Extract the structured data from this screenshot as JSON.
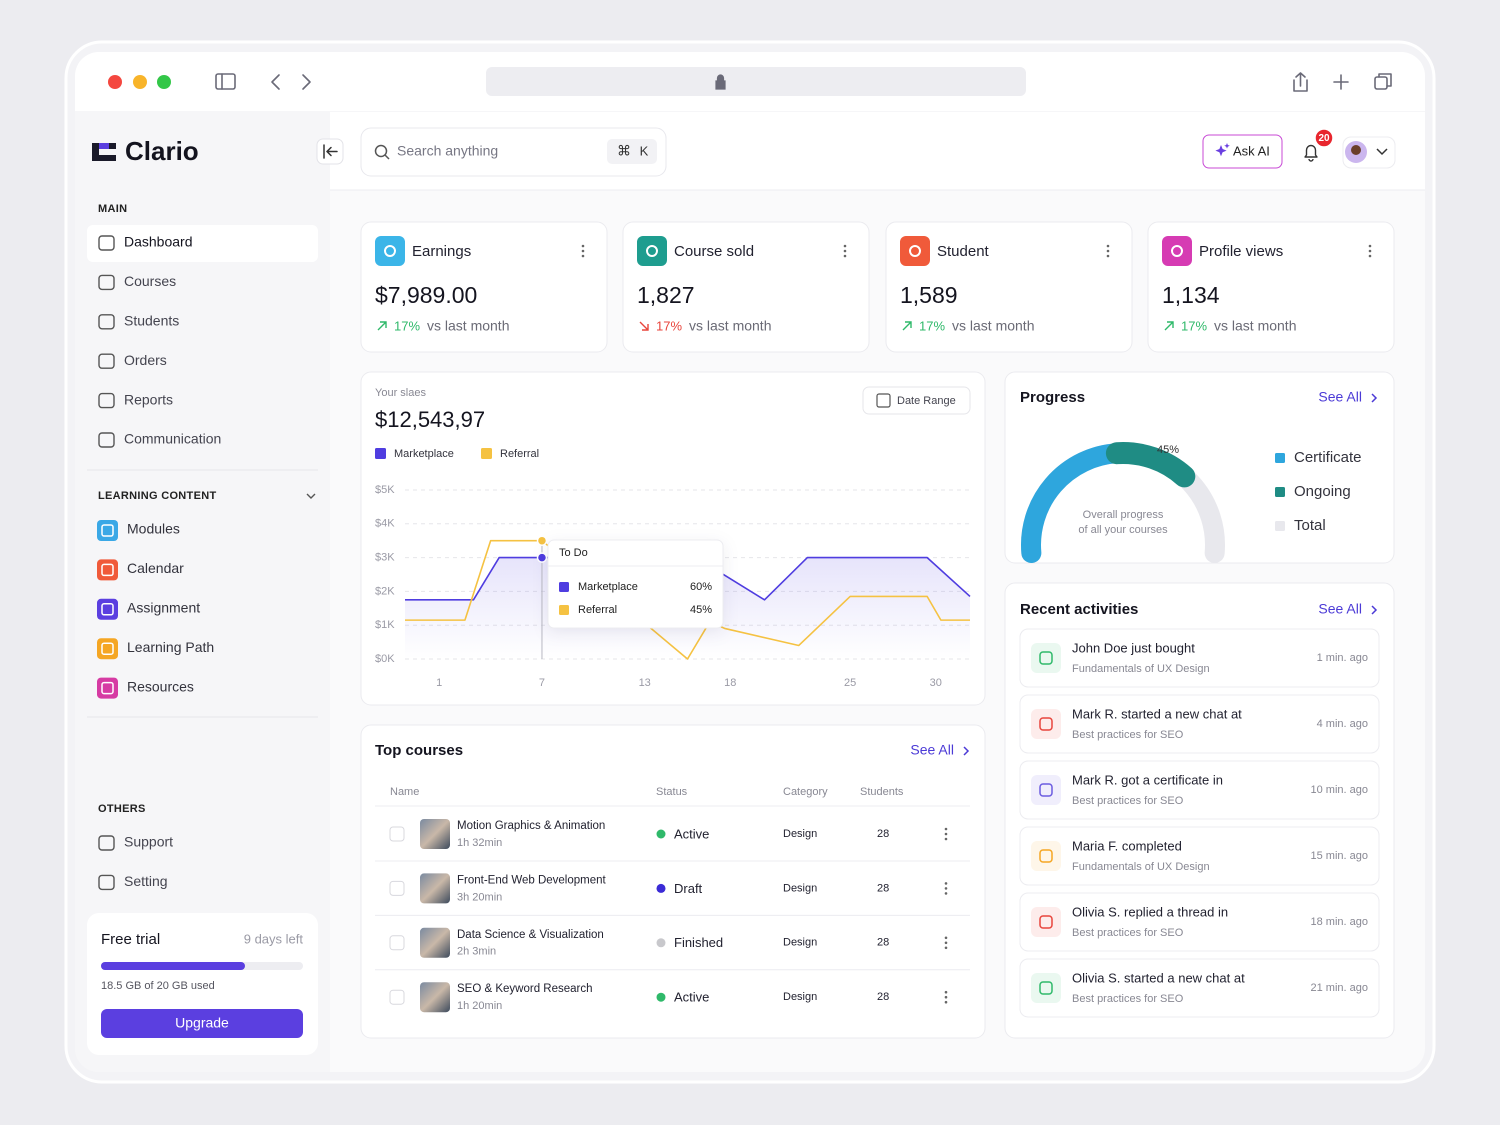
{
  "sidebar": {
    "brand": "Clario",
    "sections": [
      {
        "title": "MAIN",
        "items": [
          {
            "label": "Dashboard",
            "active": true
          },
          {
            "label": "Courses"
          },
          {
            "label": "Students"
          },
          {
            "label": "Orders"
          },
          {
            "label": "Reports"
          },
          {
            "label": "Communication"
          }
        ]
      },
      {
        "title": "LEARNING CONTENT",
        "collapsible": true,
        "items": [
          {
            "label": "Modules",
            "color": "#3aa8e6"
          },
          {
            "label": "Calendar",
            "color": "#f05a3a"
          },
          {
            "label": "Assignment",
            "color": "#5b3fe0"
          },
          {
            "label": "Learning Path",
            "color": "#f5a623"
          },
          {
            "label": "Resources",
            "color": "#d63ba3"
          }
        ]
      },
      {
        "title": "OTHERS",
        "items": [
          {
            "label": "Support"
          },
          {
            "label": "Setting"
          }
        ]
      }
    ],
    "trial": {
      "title": "Free trial",
      "days_left": "9 days left",
      "usage": "18.5 GB of 20 GB used",
      "button": "Upgrade"
    }
  },
  "topbar": {
    "search": "Search anything",
    "shortcut": [
      "⌘",
      "K"
    ],
    "ask_ai": "Ask AI",
    "notifications": "20"
  },
  "stats": [
    {
      "title": "Earnings",
      "value": "$7,989.00",
      "change": "17%",
      "trend": "up",
      "note": "vs last month",
      "color": "#3bb5e8"
    },
    {
      "title": "Course sold",
      "value": "1,827",
      "change": "17%",
      "trend": "down",
      "note": "vs last month",
      "color": "#1e9d8f"
    },
    {
      "title": "Student",
      "value": "1,589",
      "change": "17%",
      "trend": "up",
      "note": "vs last month",
      "color": "#f05a3a"
    },
    {
      "title": "Profile views",
      "value": "1,134",
      "change": "17%",
      "trend": "up",
      "note": "vs last month",
      "color": "#d63bb3"
    }
  ],
  "sales": {
    "label": "Your slaes",
    "total": "$12,543,97",
    "date_range": "Date Range"
  },
  "chart_data": [
    {
      "type": "line",
      "series": [
        {
          "name": "Marketplace",
          "color": "#4f3de0",
          "x": [
            -1,
            3,
            4.5,
            7,
            16,
            20,
            22.5,
            29.5,
            32
          ],
          "values": [
            1750,
            1750,
            3000,
            3000,
            3000,
            1750,
            3000,
            3000,
            1850
          ]
        },
        {
          "name": "Referral",
          "color": "#f5c242",
          "x": [
            -1,
            2.5,
            4,
            7,
            13.5,
            15.5,
            16.8,
            17.7,
            22,
            25,
            29.5,
            30.3,
            32
          ],
          "values": [
            1150,
            1150,
            3500,
            3500,
            850,
            0,
            1100,
            900,
            400,
            1850,
            1850,
            1150,
            1150
          ]
        }
      ],
      "xlim": [
        -1,
        32
      ],
      "xticks": [
        1,
        7,
        13,
        18,
        25,
        30
      ],
      "ylim": [
        0,
        5000
      ],
      "yticks": [
        {
          "value": 0,
          "label": "$0K"
        },
        {
          "value": 1000,
          "label": "$1K"
        },
        {
          "value": 2000,
          "label": "$2K"
        },
        {
          "value": 3000,
          "label": "$3K"
        },
        {
          "value": 4000,
          "label": "$4K"
        },
        {
          "value": 5000,
          "label": "$5K"
        }
      ],
      "grid": true,
      "tooltip": {
        "title": "To Do",
        "x": 7,
        "rows": [
          {
            "name": "Marketplace",
            "value": "60%"
          },
          {
            "name": "Referral",
            "value": "45%"
          }
        ]
      }
    },
    {
      "type": "gauge",
      "title": "Progress",
      "link": "See All",
      "label": "45%",
      "caption": [
        "Overall progress",
        "of all your courses"
      ],
      "lim": [
        0,
        100
      ],
      "series": [
        {
          "name": "Certificate",
          "color": "#2ea6dd",
          "value": 48
        },
        {
          "name": "Ongoing",
          "color": "#1f8c84",
          "value": 24
        },
        {
          "name": "Total",
          "color": "#e8e8ed",
          "value": 100
        }
      ]
    }
  ],
  "top_courses": {
    "title": "Top courses",
    "link": "See All",
    "columns": [
      "Name",
      "Status",
      "Category",
      "Students"
    ],
    "rows": [
      {
        "name": "Motion Graphics & Animation",
        "duration": "1h 32min",
        "status": "Active",
        "status_color": "#2fb96a",
        "category": "Design",
        "students": 28
      },
      {
        "name": "Front-End Web Development",
        "duration": "3h 20min",
        "status": "Draft",
        "status_color": "#3b2bd6",
        "category": "Design",
        "students": 28
      },
      {
        "name": "Data Science & Visualization",
        "duration": "2h 3min",
        "status": "Finished",
        "status_color": "#c8c8cc",
        "category": "Design",
        "students": 28
      },
      {
        "name": "SEO & Keyword Research",
        "duration": "1h 20min",
        "status": "Active",
        "status_color": "#2fb96a",
        "category": "Design",
        "students": 28
      }
    ]
  },
  "recent_activities": {
    "title": "Recent activities",
    "link": "See All",
    "items": [
      {
        "title": "John Doe just bought",
        "subtitle": "Fundamentals of UX Design",
        "time": "1 min. ago",
        "color": "#2fb96a"
      },
      {
        "title": "Mark R. started a new chat at",
        "subtitle": "Best practices for SEO",
        "time": "4 min. ago",
        "color": "#e8453c"
      },
      {
        "title": "Mark R. got a certificate in",
        "subtitle": "Best practices for SEO",
        "time": "10 min. ago",
        "color": "#6a5be0"
      },
      {
        "title": "Maria F. completed",
        "subtitle": "Fundamentals of UX Design",
        "time": "15 min. ago",
        "color": "#f5a623"
      },
      {
        "title": "Olivia S. replied a thread in",
        "subtitle": "Best practices for SEO",
        "time": "18 min. ago",
        "color": "#e8453c"
      },
      {
        "title": "Olivia S. started a new chat at",
        "subtitle": "Best practices for SEO",
        "time": "21 min. ago",
        "color": "#2fb96a"
      }
    ]
  }
}
